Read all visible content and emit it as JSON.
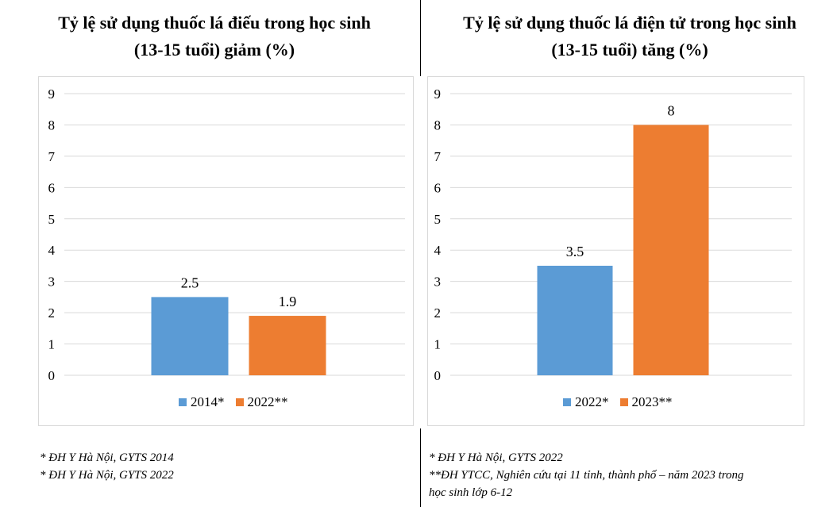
{
  "colors": {
    "series1": "#5B9BD5",
    "series2": "#ED7D31",
    "grid": "#d9d9d9"
  },
  "chart_data": [
    {
      "type": "bar",
      "title_line1": "Tỷ lệ sử dụng thuốc lá điếu trong học sinh",
      "title_line2": "(13-15 tuổi) giảm (%)",
      "categories": [
        "2014*",
        "2022**"
      ],
      "values": [
        2.5,
        1.9
      ],
      "value_labels": [
        "2.5",
        "1.9"
      ],
      "ylim": [
        0,
        9
      ],
      "yticks": [
        "0",
        "1",
        "2",
        "3",
        "4",
        "5",
        "6",
        "7",
        "8",
        "9"
      ],
      "grid": true,
      "legend": "bottom"
    },
    {
      "type": "bar",
      "title_line1": "Tỷ lệ sử dụng thuốc lá điện tử trong học sinh",
      "title_line2": "(13-15 tuổi) tăng (%)",
      "categories": [
        "2022*",
        "2023**"
      ],
      "values": [
        3.5,
        8
      ],
      "value_labels": [
        "3.5",
        "8"
      ],
      "ylim": [
        0,
        9
      ],
      "yticks": [
        "0",
        "1",
        "2",
        "3",
        "4",
        "5",
        "6",
        "7",
        "8",
        "9"
      ],
      "grid": true,
      "legend": "bottom"
    }
  ],
  "notes": {
    "left": [
      "* ĐH Y Hà Nội, GYTS 2014",
      "* ĐH Y Hà Nội, GYTS 2022"
    ],
    "right": [
      "* ĐH Y Hà Nội, GYTS 2022",
      "**ĐH YTCC, Nghiên cứu tại 11 tỉnh, thành phố  – năm 2023 trong",
      "học sinh lớp 6-12"
    ]
  }
}
